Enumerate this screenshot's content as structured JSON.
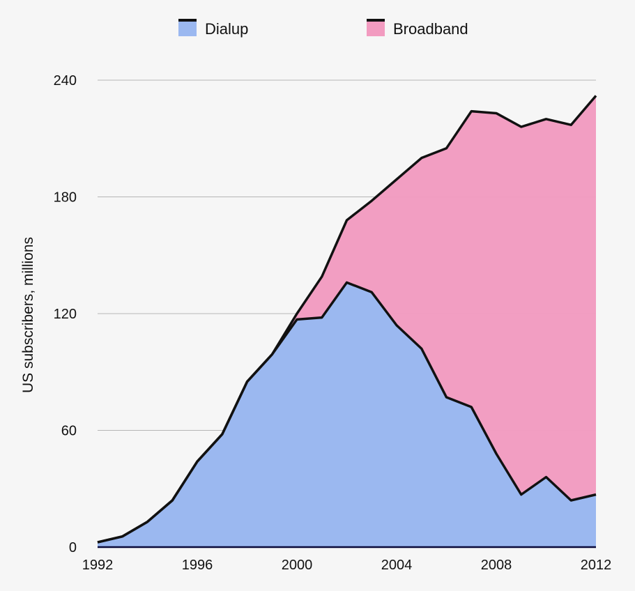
{
  "chart_data": {
    "type": "area",
    "stacked": true,
    "title": "",
    "xlabel": "",
    "ylabel": "US subscribers, millions",
    "x": [
      1992,
      1993,
      1994,
      1995,
      1996,
      1997,
      1998,
      1999,
      2000,
      2001,
      2002,
      2003,
      2004,
      2005,
      2006,
      2007,
      2008,
      2009,
      2010,
      2011,
      2012
    ],
    "series": [
      {
        "name": "Dialup",
        "color": "#9bb8f0",
        "values": [
          2.5,
          5.5,
          13,
          24,
          44,
          58,
          85,
          99,
          117,
          118,
          136,
          131,
          114,
          102,
          77,
          72,
          48,
          27,
          36,
          24,
          27
        ]
      },
      {
        "name": "Broadband",
        "color": "#f29bc0",
        "values": [
          0,
          0,
          0,
          0,
          0,
          0,
          0,
          0,
          3,
          21,
          32,
          47,
          75,
          98,
          128,
          152,
          175,
          189,
          184,
          193,
          205
        ]
      }
    ],
    "xlim": [
      1992,
      2012
    ],
    "ylim": [
      0,
      240
    ],
    "xticks": [
      1992,
      1996,
      2000,
      2004,
      2008,
      2012
    ],
    "yticks": [
      0,
      60,
      120,
      180,
      240
    ],
    "grid": true,
    "legend_position": "top"
  }
}
